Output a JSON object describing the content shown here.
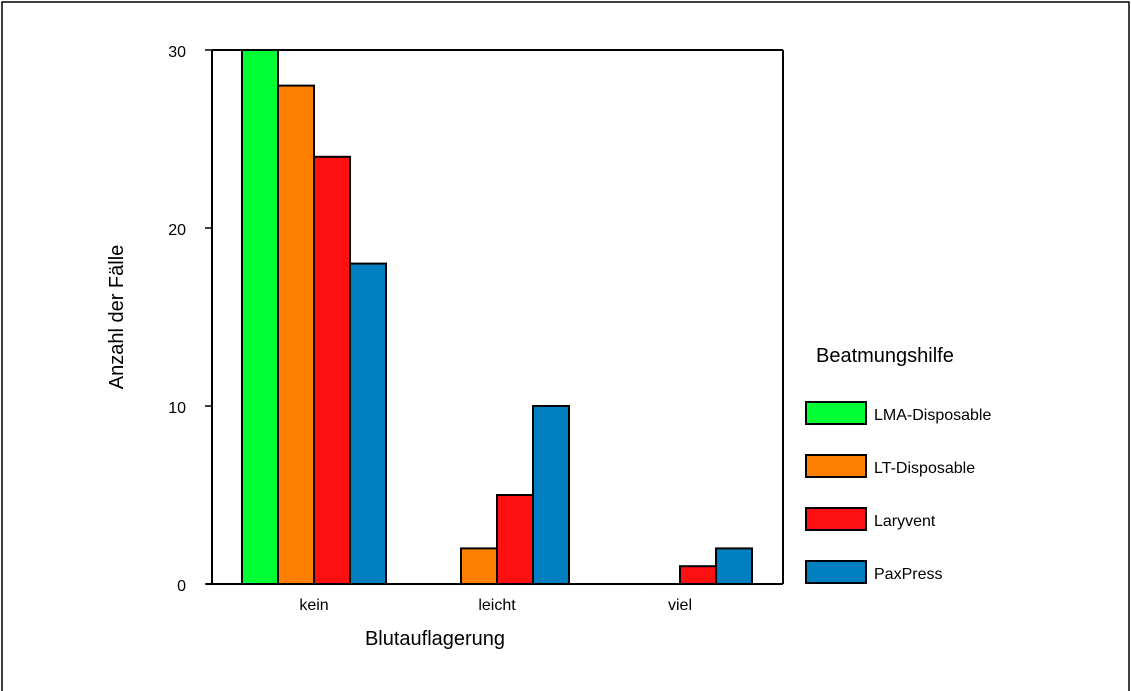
{
  "chart_data": {
    "type": "bar",
    "xlabel": "Blutauflagerung",
    "ylabel": "Anzahl der Fälle",
    "categories": [
      "kein",
      "leicht",
      "viel"
    ],
    "yticks": [
      0,
      10,
      20,
      30
    ],
    "ylim": [
      0,
      30
    ],
    "legend_title": "Beatmungshilfe",
    "legend_position": "right",
    "grid": false,
    "series": [
      {
        "name": "LMA-Disposable",
        "color": "#00ff33",
        "values": [
          30,
          0,
          0
        ]
      },
      {
        "name": "LT-Disposable",
        "color": "#ff8000",
        "values": [
          28,
          2,
          0
        ]
      },
      {
        "name": "Laryvent",
        "color": "#ff1010",
        "values": [
          24,
          5,
          1
        ]
      },
      {
        "name": "PaxPress",
        "color": "#0080c0",
        "values": [
          18,
          10,
          2
        ]
      }
    ]
  }
}
